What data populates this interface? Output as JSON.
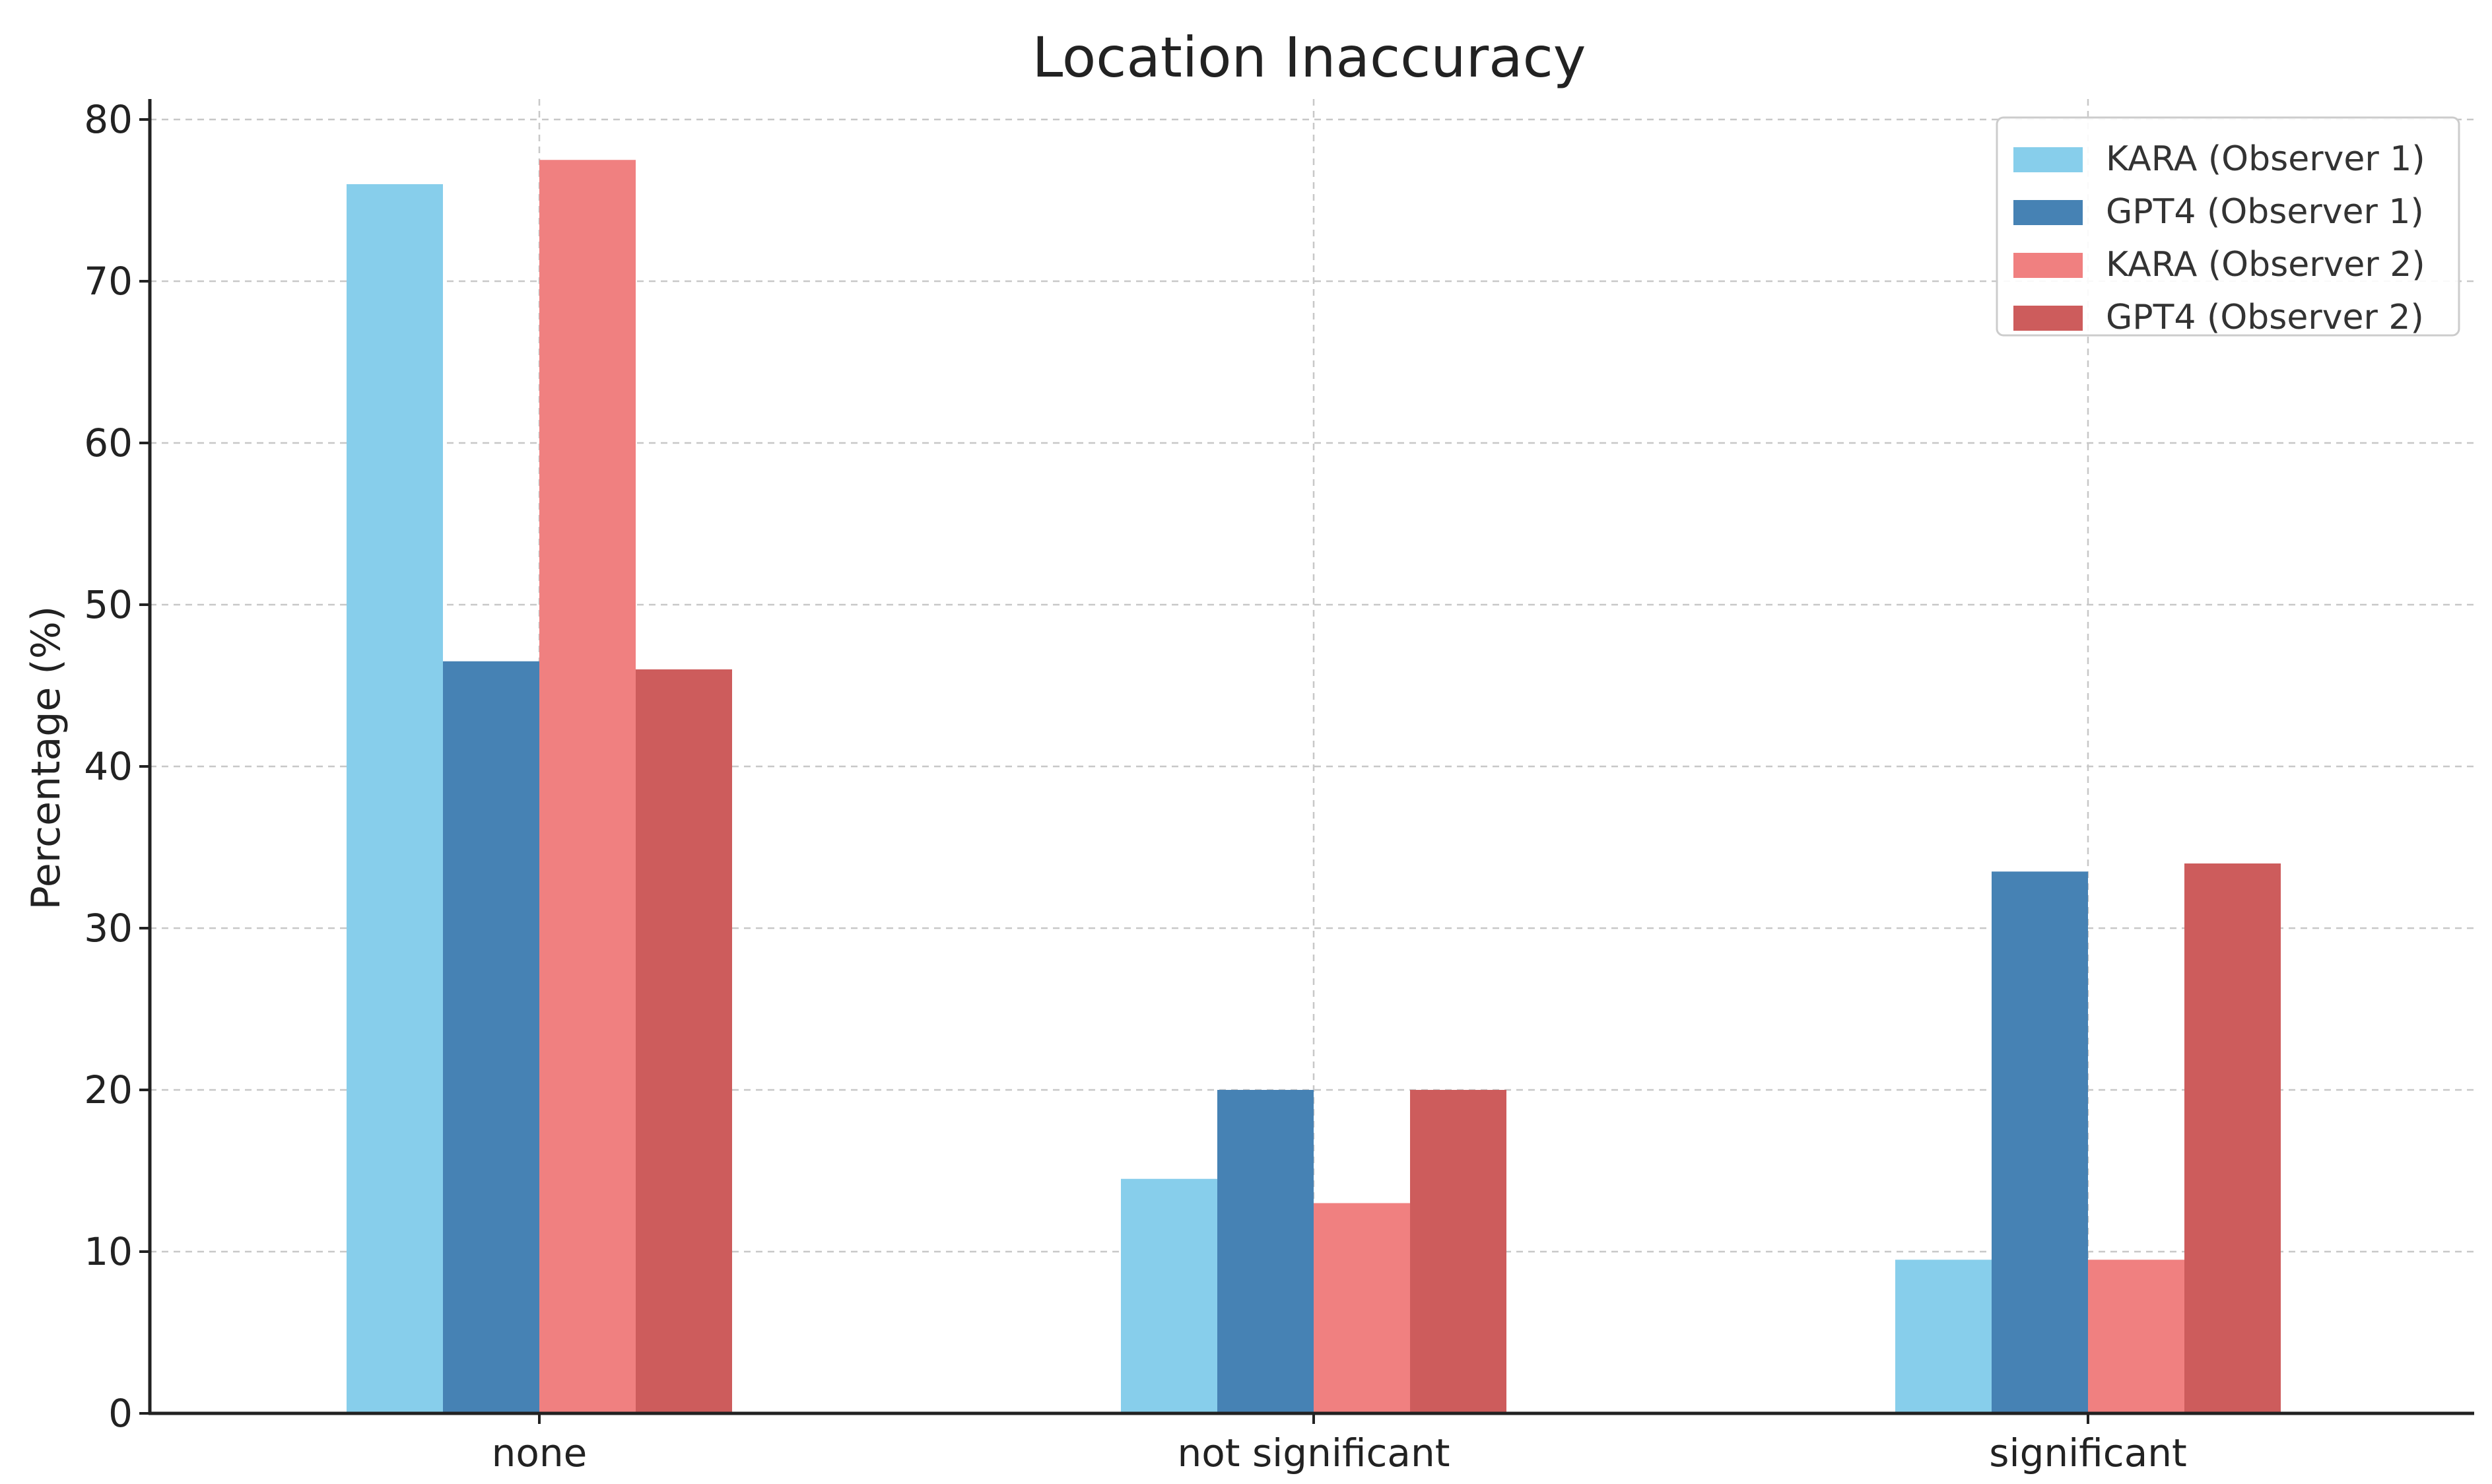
{
  "chart_data": {
    "type": "bar",
    "title": "Location Inaccuracy",
    "xlabel": "",
    "ylabel": "Percentage (%)",
    "categories": [
      "none",
      "not significant",
      "significant"
    ],
    "ylim": [
      0,
      80
    ],
    "yticks": [
      0,
      10,
      20,
      30,
      40,
      50,
      60,
      70,
      80
    ],
    "grid": true,
    "legend_position": "top-right",
    "series": [
      {
        "name": "KARA (Observer 1)",
        "color": "#87CEEB",
        "values": [
          76.0,
          14.5,
          9.5
        ]
      },
      {
        "name": "GPT4 (Observer 1)",
        "color": "#4682B4",
        "values": [
          46.5,
          20.0,
          33.5
        ]
      },
      {
        "name": "KARA (Observer 2)",
        "color": "#F08080",
        "values": [
          77.5,
          13.0,
          9.5
        ]
      },
      {
        "name": "GPT4 (Observer 2)",
        "color": "#CD5C5C",
        "values": [
          46.0,
          20.0,
          34.0
        ]
      }
    ]
  }
}
